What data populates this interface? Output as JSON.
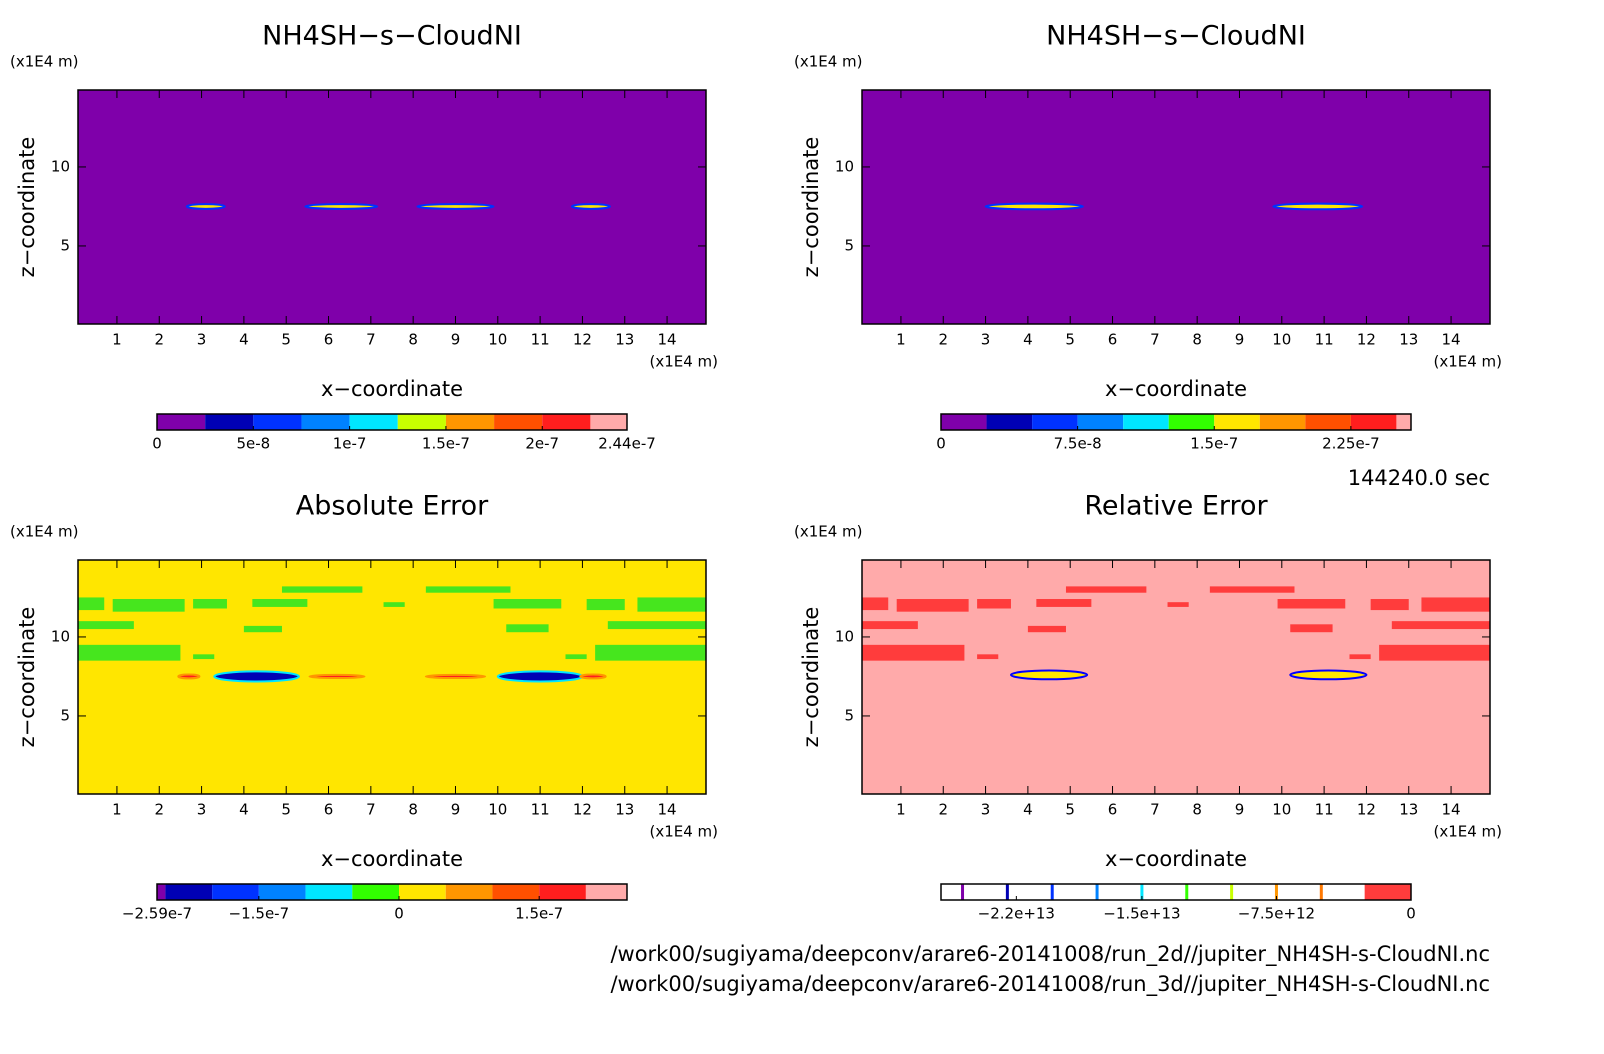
{
  "chart_data": [
    {
      "type": "contour",
      "title": "NH4SH−s−CloudNI",
      "xlabel": "x−coordinate",
      "ylabel": "z−coordinate",
      "x_unit": "(x1E4 m)",
      "y_unit": "(x1E4 m)",
      "xlim": [
        0.08,
        14.92
      ],
      "xticks": [
        1,
        2,
        3,
        4,
        5,
        6,
        7,
        8,
        9,
        10,
        11,
        12,
        13,
        14
      ],
      "ylim": [
        0.06,
        14.87
      ],
      "yticks": [
        5,
        10
      ],
      "background": "#7f00aa",
      "colorbar": {
        "levels": [
          0,
          2.5e-08,
          5e-08,
          7.5e-08,
          1e-07,
          1.25e-07,
          1.5e-07,
          1.75e-07,
          2e-07,
          2.25e-07,
          2.44e-07
        ],
        "colors": [
          "#7f00aa",
          "#0000b4",
          "#0032ff",
          "#0082ff",
          "#00e6ff",
          "#c8ff00",
          "#ff9600",
          "#ff5000",
          "#ff1e1e",
          "#ffaaaa"
        ],
        "ticks": [
          {
            "value": 0,
            "label": "0"
          },
          {
            "value": 5e-08,
            "label": "5e-8"
          },
          {
            "value": 1e-07,
            "label": "1e-7"
          },
          {
            "value": 1.5e-07,
            "label": "1.5e-7"
          },
          {
            "value": 2e-07,
            "label": "2e-7"
          },
          {
            "value": 2.44e-07,
            "label": "2.44e-7"
          }
        ]
      },
      "patches": [],
      "blobs": [
        {
          "x": 3.1,
          "z": 7.5,
          "rx": 0.45,
          "rz": 0.15,
          "fill": "#ffe600",
          "edge": "#0032ff"
        },
        {
          "x": 6.3,
          "z": 7.5,
          "rx": 0.85,
          "rz": 0.15,
          "fill": "#ffe600",
          "edge": "#0032ff"
        },
        {
          "x": 9.0,
          "z": 7.5,
          "rx": 0.9,
          "rz": 0.15,
          "fill": "#ffe600",
          "edge": "#0032ff"
        },
        {
          "x": 12.2,
          "z": 7.5,
          "rx": 0.45,
          "rz": 0.15,
          "fill": "#ffe600",
          "edge": "#0032ff"
        }
      ]
    },
    {
      "type": "contour",
      "title": "NH4SH−s−CloudNI",
      "xlabel": "x−coordinate",
      "ylabel": "z−coordinate",
      "x_unit": "(x1E4 m)",
      "y_unit": "(x1E4 m)",
      "xlim": [
        0.08,
        14.92
      ],
      "xticks": [
        1,
        2,
        3,
        4,
        5,
        6,
        7,
        8,
        9,
        10,
        11,
        12,
        13,
        14
      ],
      "ylim": [
        0.06,
        14.87
      ],
      "yticks": [
        5,
        10
      ],
      "background": "#7f00aa",
      "colorbar": {
        "levels": [
          0,
          2.5e-08,
          5e-08,
          7.5e-08,
          1e-07,
          1.25e-07,
          1.5e-07,
          1.75e-07,
          2e-07,
          2.25e-07,
          2.5e-07,
          2.58e-07
        ],
        "colors": [
          "#7f00aa",
          "#0000b4",
          "#0032ff",
          "#0082ff",
          "#00e6ff",
          "#32ff00",
          "#ffe600",
          "#ff9600",
          "#ff5000",
          "#ff1e1e",
          "#ffaaaa"
        ],
        "ticks": [
          {
            "value": 0,
            "label": "0"
          },
          {
            "value": 7.5e-08,
            "label": "7.5e-8"
          },
          {
            "value": 1.5e-07,
            "label": "1.5e-7"
          },
          {
            "value": 2.25e-07,
            "label": "2.25e-7"
          }
        ]
      },
      "patches": [],
      "blobs": [
        {
          "x": 4.15,
          "z": 7.5,
          "rx": 1.15,
          "rz": 0.18,
          "fill": "#ffe600",
          "edge": "#0032ff"
        },
        {
          "x": 10.85,
          "z": 7.5,
          "rx": 1.05,
          "rz": 0.18,
          "fill": "#ffe600",
          "edge": "#0032ff"
        }
      ]
    },
    {
      "type": "contour",
      "title": "Absolute Error",
      "xlabel": "x−coordinate",
      "ylabel": "z−coordinate",
      "x_unit": "(x1E4 m)",
      "y_unit": "(x1E4 m)",
      "xlim": [
        0.08,
        14.92
      ],
      "xticks": [
        1,
        2,
        3,
        4,
        5,
        6,
        7,
        8,
        9,
        10,
        11,
        12,
        13,
        14
      ],
      "ylim": [
        0.06,
        14.87
      ],
      "yticks": [
        5,
        10
      ],
      "background": "#ffe600",
      "colorbar": {
        "levels": [
          -2.59e-07,
          -2.5e-07,
          -2e-07,
          -1.5e-07,
          -1e-07,
          -5e-08,
          0,
          5e-08,
          1e-07,
          1.5e-07,
          2e-07,
          2.44e-07
        ],
        "colors": [
          "#7f00aa",
          "#0000b4",
          "#0032ff",
          "#0082ff",
          "#00e6ff",
          "#32ff00",
          "#ffe600",
          "#ff9600",
          "#ff5000",
          "#ff1e1e",
          "#ffaaaa"
        ],
        "ticks": [
          {
            "value": -2.59e-07,
            "label": "−2.59e-7"
          },
          {
            "value": -1.5e-07,
            "label": "−1.5e-7"
          },
          {
            "value": 0,
            "label": "0"
          },
          {
            "value": 1.5e-07,
            "label": "1.5e-7"
          }
        ]
      },
      "patch_color": "#46e61e",
      "patches": [
        [
          4.9,
          6.8,
          12.8,
          13.2
        ],
        [
          8.3,
          10.3,
          12.8,
          13.2
        ],
        [
          0.08,
          0.7,
          11.7,
          12.5
        ],
        [
          0.9,
          2.6,
          11.6,
          12.4
        ],
        [
          2.8,
          3.6,
          11.8,
          12.4
        ],
        [
          4.2,
          5.5,
          11.9,
          12.4
        ],
        [
          7.3,
          7.8,
          11.9,
          12.2
        ],
        [
          9.9,
          11.5,
          11.8,
          12.4
        ],
        [
          12.1,
          13.0,
          11.7,
          12.4
        ],
        [
          13.3,
          14.92,
          11.6,
          12.5
        ],
        [
          0.08,
          1.4,
          10.5,
          11.0
        ],
        [
          4.0,
          4.9,
          10.3,
          10.7
        ],
        [
          10.2,
          11.2,
          10.3,
          10.8
        ],
        [
          12.6,
          14.92,
          10.5,
          11.0
        ],
        [
          0.08,
          2.5,
          8.5,
          9.5
        ],
        [
          2.8,
          3.3,
          8.6,
          8.9
        ],
        [
          11.6,
          12.1,
          8.6,
          8.9
        ],
        [
          12.3,
          14.92,
          8.5,
          9.5
        ]
      ],
      "blobs": [
        {
          "x": 2.7,
          "z": 7.5,
          "rx": 0.25,
          "rz": 0.12,
          "fill": "#ff1e1e",
          "edge": "#ff9600"
        },
        {
          "x": 4.3,
          "z": 7.5,
          "rx": 1.0,
          "rz": 0.32,
          "fill": "#0000b4",
          "edge": "#00e6ff"
        },
        {
          "x": 6.2,
          "z": 7.5,
          "rx": 0.65,
          "rz": 0.1,
          "fill": "#ff1e1e",
          "edge": "#ff9600"
        },
        {
          "x": 9.0,
          "z": 7.5,
          "rx": 0.7,
          "rz": 0.1,
          "fill": "#ff1e1e",
          "edge": "#ff9600"
        },
        {
          "x": 11.0,
          "z": 7.5,
          "rx": 1.0,
          "rz": 0.32,
          "fill": "#0000b4",
          "edge": "#00e6ff"
        },
        {
          "x": 12.25,
          "z": 7.5,
          "rx": 0.3,
          "rz": 0.12,
          "fill": "#ff1e1e",
          "edge": "#ff9600"
        }
      ]
    },
    {
      "type": "contour",
      "title": "Relative Error",
      "xlabel": "x−coordinate",
      "ylabel": "z−coordinate",
      "x_unit": "(x1E4 m)",
      "y_unit": "(x1E4 m)",
      "xlim": [
        0.08,
        14.92
      ],
      "xticks": [
        1,
        2,
        3,
        4,
        5,
        6,
        7,
        8,
        9,
        10,
        11,
        12,
        13,
        14
      ],
      "ylim": [
        0.06,
        14.87
      ],
      "yticks": [
        5,
        10
      ],
      "background": "#ffaaaa",
      "colorbar": {
        "levels": [
          -26200000000000.0,
          -25000000000000.0,
          -22500000000000.0,
          -20000000000000.0,
          -17500000000000.0,
          -15000000000000.0,
          -12500000000000.0,
          -10000000000000.0,
          -7500000000000.0,
          -5000000000000.0,
          -2500000000000.0,
          0
        ],
        "colors": [
          "#ffffff",
          "#ffffff",
          "#ffffff",
          "#ffffff",
          "#ffffff",
          "#ffffff",
          "#ffffff",
          "#ffffff",
          "#ffffff",
          "#ffffff",
          "#ff3c3c"
        ],
        "line_colors": [
          "#7f00aa",
          "#0000b4",
          "#0032ff",
          "#0082ff",
          "#00e6ff",
          "#32ff00",
          "#c8ff00",
          "#ff9600",
          "#ff7800",
          "#ff3c3c"
        ],
        "ticks": [
          {
            "value": -22000000000000.0,
            "label": "−2.2e+13"
          },
          {
            "value": -15000000000000.0,
            "label": "−1.5e+13"
          },
          {
            "value": -7500000000000.0,
            "label": "−7.5e+12"
          },
          {
            "value": 0,
            "label": "0"
          }
        ]
      },
      "patch_color": "#ff3c3c",
      "patches": [
        [
          4.9,
          6.8,
          12.8,
          13.2
        ],
        [
          8.3,
          10.3,
          12.8,
          13.2
        ],
        [
          0.08,
          0.7,
          11.7,
          12.5
        ],
        [
          0.9,
          2.6,
          11.6,
          12.4
        ],
        [
          2.8,
          3.6,
          11.8,
          12.4
        ],
        [
          4.2,
          5.5,
          11.9,
          12.4
        ],
        [
          7.3,
          7.8,
          11.9,
          12.2
        ],
        [
          9.9,
          11.5,
          11.8,
          12.4
        ],
        [
          12.1,
          13.0,
          11.7,
          12.4
        ],
        [
          13.3,
          14.92,
          11.6,
          12.5
        ],
        [
          0.08,
          1.4,
          10.5,
          11.0
        ],
        [
          4.0,
          4.9,
          10.3,
          10.7
        ],
        [
          10.2,
          11.2,
          10.3,
          10.8
        ],
        [
          12.6,
          14.92,
          10.5,
          11.0
        ],
        [
          0.08,
          2.5,
          8.5,
          9.5
        ],
        [
          2.8,
          3.3,
          8.6,
          8.9
        ],
        [
          11.6,
          12.1,
          8.6,
          8.9
        ],
        [
          12.3,
          14.92,
          8.5,
          9.5
        ]
      ],
      "blobs": [
        {
          "x": 4.5,
          "z": 7.6,
          "rx": 0.9,
          "rz": 0.28,
          "fill": "#ffe600",
          "edge": "#0000ff"
        },
        {
          "x": 11.1,
          "z": 7.6,
          "rx": 0.9,
          "rz": 0.28,
          "fill": "#ffe600",
          "edge": "#0000ff"
        }
      ]
    }
  ],
  "time": "144240.0 sec",
  "files": [
    "/work00/sugiyama/deepconv/arare6-20141008/run_2d//jupiter_NH4SH-s-CloudNI.nc",
    "/work00/sugiyama/deepconv/arare6-20141008/run_3d//jupiter_NH4SH-s-CloudNI.nc"
  ]
}
